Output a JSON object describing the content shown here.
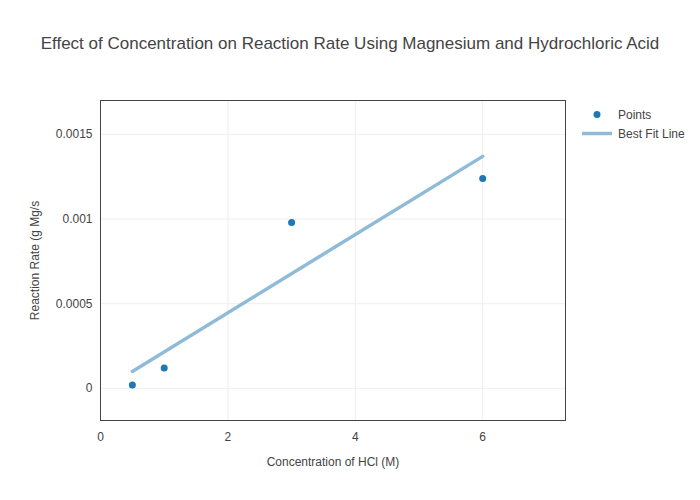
{
  "chart_data": {
    "type": "scatter",
    "title": "Effect of Concentration on Reaction Rate Using Magnesium and Hydrochloric Acid",
    "x_label": "Concentration of HCl (M)",
    "y_label": "Reaction Rate (g Mg/s",
    "xlim": [
      0,
      7.3
    ],
    "xticks": [
      0,
      2,
      4,
      6
    ],
    "ylim": [
      -0.00019,
      0.0017
    ],
    "yticks": [
      0,
      0.0005,
      0.001,
      0.0015
    ],
    "grid": true,
    "legend": "top-right",
    "series": [
      {
        "name": "Points",
        "type": "scatter",
        "marker": "circle",
        "color": "#1f77b4",
        "x": [
          0.5,
          1,
          3,
          6
        ],
        "values": [
          2e-05,
          0.00012,
          0.00098,
          0.00124
        ]
      },
      {
        "name": "Best Fit Line",
        "type": "line",
        "line_style": "solid",
        "color": "#8fbbd9",
        "x": [
          0.5,
          6
        ],
        "values": [
          0.0001,
          0.00137
        ]
      }
    ]
  }
}
